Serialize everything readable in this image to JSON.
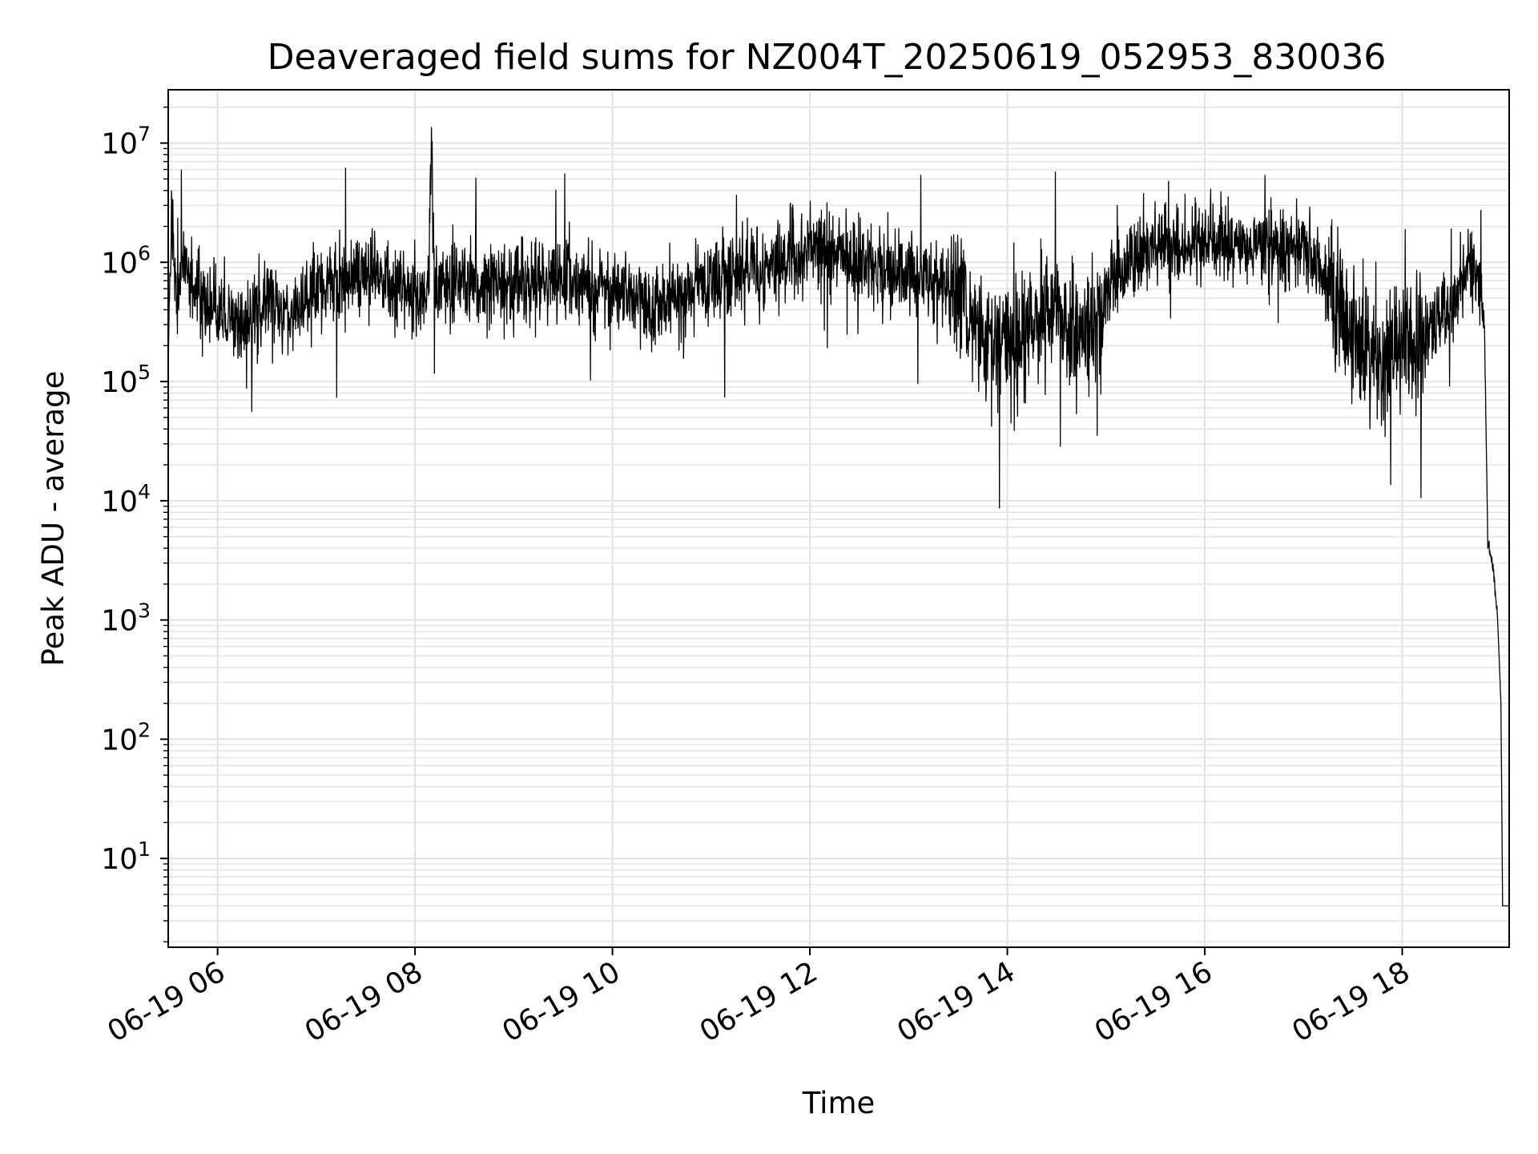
{
  "chart_data": {
    "type": "line",
    "title": "Deaveraged field sums for NZ004T_20250619_052953_830036",
    "xlabel": "Time",
    "ylabel": "Peak ADU - average",
    "yscale": "log",
    "xlim": [
      "2025-06-19 05:30",
      "2025-06-19 19:05"
    ],
    "ylim": [
      1.8,
      28000000
    ],
    "grid": true,
    "legend": "none",
    "line_color": "#000000",
    "x_ticks": [
      {
        "label": "06-19 06",
        "value": "2025-06-19 06:00"
      },
      {
        "label": "06-19 08",
        "value": "2025-06-19 08:00"
      },
      {
        "label": "06-19 10",
        "value": "2025-06-19 10:00"
      },
      {
        "label": "06-19 12",
        "value": "2025-06-19 12:00"
      },
      {
        "label": "06-19 14",
        "value": "2025-06-19 14:00"
      },
      {
        "label": "06-19 16",
        "value": "2025-06-19 16:00"
      },
      {
        "label": "06-19 18",
        "value": "2025-06-19 18:00"
      }
    ],
    "y_ticks": [
      {
        "base": "10",
        "exp": "1",
        "value": 10
      },
      {
        "base": "10",
        "exp": "2",
        "value": 100
      },
      {
        "base": "10",
        "exp": "3",
        "value": 1000
      },
      {
        "base": "10",
        "exp": "4",
        "value": 10000
      },
      {
        "base": "10",
        "exp": "5",
        "value": 100000
      },
      {
        "base": "10",
        "exp": "6",
        "value": 1000000
      },
      {
        "base": "10",
        "exp": "7",
        "value": 10000000
      }
    ],
    "series": [
      {
        "color": "#000000",
        "x": [
          "2025-06-19 05:30",
          "2025-06-19 05:32",
          "2025-06-19 05:35",
          "2025-06-19 05:40",
          "2025-06-19 05:50",
          "2025-06-19 06:00",
          "2025-06-19 06:15",
          "2025-06-19 06:30",
          "2025-06-19 06:45",
          "2025-06-19 07:00",
          "2025-06-19 07:15",
          "2025-06-19 07:30",
          "2025-06-19 07:45",
          "2025-06-19 08:00",
          "2025-06-19 08:08",
          "2025-06-19 08:10",
          "2025-06-19 08:12",
          "2025-06-19 08:30",
          "2025-06-19 09:00",
          "2025-06-19 09:30",
          "2025-06-19 10:00",
          "2025-06-19 10:30",
          "2025-06-19 11:00",
          "2025-06-19 11:30",
          "2025-06-19 12:00",
          "2025-06-19 12:30",
          "2025-06-19 13:00",
          "2025-06-19 13:30",
          "2025-06-19 13:45",
          "2025-06-19 14:00",
          "2025-06-19 14:15",
          "2025-06-19 14:30",
          "2025-06-19 14:45",
          "2025-06-19 15:00",
          "2025-06-19 15:15",
          "2025-06-19 15:30",
          "2025-06-19 15:45",
          "2025-06-19 16:00",
          "2025-06-19 16:30",
          "2025-06-19 17:00",
          "2025-06-19 17:15",
          "2025-06-19 17:30",
          "2025-06-19 17:45",
          "2025-06-19 18:00",
          "2025-06-19 18:15",
          "2025-06-19 18:30",
          "2025-06-19 18:40",
          "2025-06-19 18:45",
          "2025-06-19 18:50",
          "2025-06-19 18:52",
          "2025-06-19 18:55",
          "2025-06-19 18:58",
          "2025-06-19 19:00",
          "2025-06-19 19:01",
          "2025-06-19 19:05"
        ],
        "y": [
          200000,
          2400000,
          500000,
          900000,
          450000,
          400000,
          300000,
          500000,
          350000,
          600000,
          700000,
          900000,
          600000,
          550000,
          500000,
          13500000,
          600000,
          700000,
          650000,
          700000,
          600000,
          450000,
          700000,
          900000,
          1300000,
          1000000,
          800000,
          600000,
          250000,
          200000,
          300000,
          400000,
          200000,
          500000,
          1000000,
          1400000,
          1200000,
          1500000,
          1200000,
          1500000,
          600000,
          250000,
          150000,
          200000,
          250000,
          400000,
          900000,
          800000,
          300000,
          4500,
          3000,
          1000,
          200,
          4,
          4
        ]
      }
    ]
  }
}
